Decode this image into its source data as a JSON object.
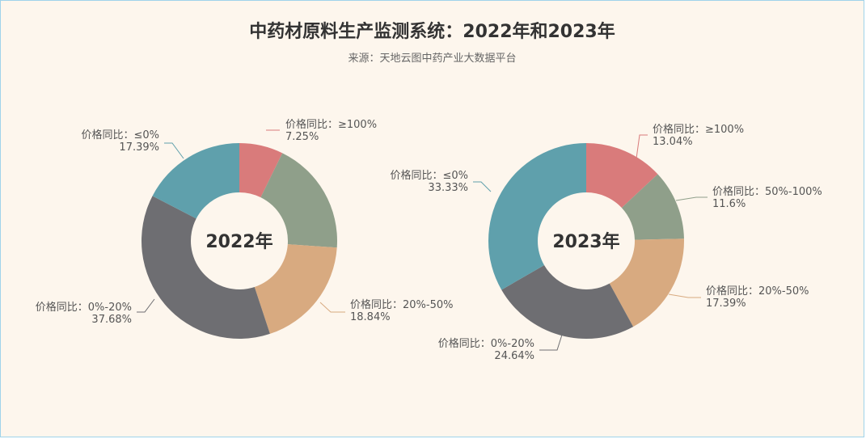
{
  "title": "中药材原料生产监测系统：2022年和2023年",
  "subtitle": "来源：天地云图中药产业大数据平台",
  "chart_data": [
    {
      "type": "pie",
      "center_label": "2022年",
      "slices": [
        {
          "label": "价格同比：≥100%",
          "value": 7.25,
          "value_text": "7.25%",
          "color": "#d97b7b"
        },
        {
          "label": "价格同比：20%-50%",
          "value": 18.84,
          "value_text": "18.84%",
          "color": "#d8aa80"
        },
        {
          "label": "价格同比：0%-20%",
          "value": 37.68,
          "value_text": "37.68%",
          "color": "#6e6e72"
        },
        {
          "label": "价格同比：≤0%",
          "value": 17.39,
          "value_text": "17.39%",
          "color": "#5fa0ac"
        }
      ],
      "unlabeled_slice_color": "#8f9f8a"
    },
    {
      "type": "pie",
      "center_label": "2023年",
      "slices": [
        {
          "label": "价格同比：≥100%",
          "value": 13.04,
          "value_text": "13.04%",
          "color": "#d97b7b"
        },
        {
          "label": "价格同比：50%-100%",
          "value": 11.6,
          "value_text": "11.6%",
          "color": "#8f9f8a"
        },
        {
          "label": "价格同比：20%-50%",
          "value": 17.39,
          "value_text": "17.39%",
          "color": "#d8aa80"
        },
        {
          "label": "价格同比：0%-20%",
          "value": 24.64,
          "value_text": "24.64%",
          "color": "#6e6e72"
        },
        {
          "label": "价格同比：≤0%",
          "value": 33.33,
          "value_text": "33.33%",
          "color": "#5fa0ac"
        }
      ]
    }
  ]
}
